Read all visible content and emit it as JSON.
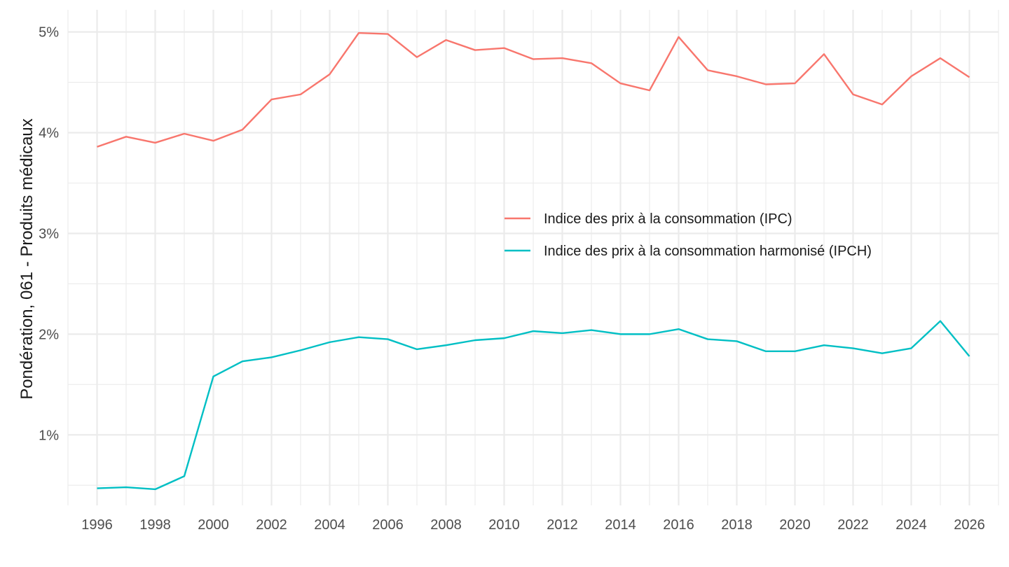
{
  "chart_data": {
    "type": "line",
    "title": "",
    "xlabel": "",
    "ylabel": "Pondération, 061 - Produits médicaux",
    "x": [
      1996,
      1997,
      1998,
      1999,
      2000,
      2001,
      2002,
      2003,
      2004,
      2005,
      2006,
      2007,
      2008,
      2009,
      2010,
      2011,
      2012,
      2013,
      2014,
      2015,
      2016,
      2017,
      2018,
      2019,
      2020,
      2021,
      2022,
      2023,
      2024,
      2025,
      2026
    ],
    "xlim": [
      1995,
      2027
    ],
    "ylim": [
      0.3,
      5.22
    ],
    "y_format": "percent",
    "x_ticks": [
      "1996",
      "1998",
      "2000",
      "2002",
      "2004",
      "2006",
      "2008",
      "2010",
      "2012",
      "2014",
      "2016",
      "2018",
      "2020",
      "2022",
      "2024",
      "2026"
    ],
    "y_ticks": [
      {
        "value": 1,
        "label": "1%"
      },
      {
        "value": 2,
        "label": "2%"
      },
      {
        "value": 3,
        "label": "3%"
      },
      {
        "value": 4,
        "label": "4%"
      },
      {
        "value": 5,
        "label": "5%"
      }
    ],
    "grid": true,
    "legend_position": "inside-right",
    "series": [
      {
        "name": "Indice des prix à la consommation (IPC)",
        "color": "#F8766D",
        "values": [
          3.86,
          3.96,
          3.9,
          3.99,
          3.92,
          4.03,
          4.33,
          4.38,
          4.58,
          4.99,
          4.98,
          4.75,
          4.92,
          4.82,
          4.84,
          4.73,
          4.74,
          4.69,
          4.49,
          4.42,
          4.95,
          4.62,
          4.56,
          4.48,
          4.49,
          4.78,
          4.38,
          4.28,
          4.56,
          4.74,
          4.55
        ]
      },
      {
        "name": "Indice des prix à la consommation harmonisé (IPCH)",
        "color": "#00BFC4",
        "values": [
          0.47,
          0.48,
          0.46,
          0.59,
          1.58,
          1.73,
          1.77,
          1.84,
          1.92,
          1.97,
          1.95,
          1.85,
          1.89,
          1.94,
          1.96,
          2.03,
          2.01,
          2.04,
          2.0,
          2.0,
          2.05,
          1.95,
          1.93,
          1.83,
          1.83,
          1.89,
          1.86,
          1.81,
          1.86,
          2.13,
          1.78
        ]
      }
    ]
  }
}
